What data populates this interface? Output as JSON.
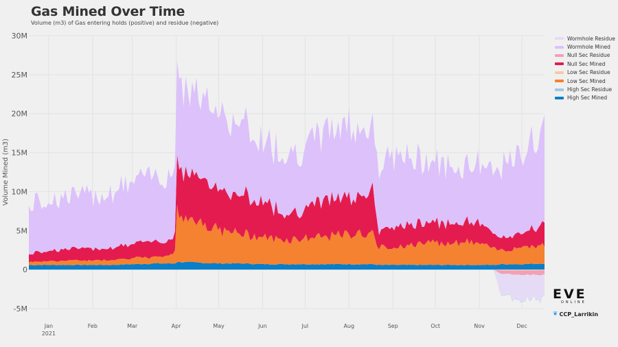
{
  "header": {
    "title": "Gas Mined Over Time",
    "subtitle": "Volume (m3) of Gas entering holds (positive) and residue (negative)"
  },
  "branding": {
    "logo_text": "EVE",
    "logo_subtext": "ONLINE",
    "credit": "CCP_Larrikin",
    "credit_icon": "twitter-bird-icon"
  },
  "chart_data": {
    "type": "area",
    "stacked": true,
    "ylabel": "Volume Mined (m3)",
    "xlabel": "",
    "ylim": [
      -5000000,
      30000000
    ],
    "y_ticks": [
      {
        "value": 30000000,
        "label": "30M"
      },
      {
        "value": 25000000,
        "label": "25M"
      },
      {
        "value": 20000000,
        "label": "20M"
      },
      {
        "value": 15000000,
        "label": "15M"
      },
      {
        "value": 10000000,
        "label": "10M"
      },
      {
        "value": 5000000,
        "label": "5M"
      },
      {
        "value": 0,
        "label": "0"
      },
      {
        "value": -5000000,
        "label": "-5M"
      }
    ],
    "x_ticks": [
      "Jan",
      "Feb",
      "Mar",
      "Apr",
      "May",
      "Jun",
      "Jul",
      "Aug",
      "Sep",
      "Oct",
      "Nov",
      "Dec"
    ],
    "x_year_label": "2021",
    "x_range": [
      "2021-01-01",
      "2021-12-31"
    ],
    "grid": true,
    "legend_position": "right",
    "x": [
      "2021-01-01",
      "2021-01-15",
      "2021-02-01",
      "2021-02-15",
      "2021-03-01",
      "2021-03-15",
      "2021-04-01",
      "2021-04-14",
      "2021-04-15",
      "2021-05-01",
      "2021-05-15",
      "2021-06-01",
      "2021-06-15",
      "2021-07-01",
      "2021-07-15",
      "2021-08-01",
      "2021-08-15",
      "2021-09-01",
      "2021-09-05",
      "2021-09-15",
      "2021-10-01",
      "2021-10-15",
      "2021-11-01",
      "2021-11-15",
      "2021-11-25",
      "2021-12-01",
      "2021-12-15",
      "2021-12-31"
    ],
    "series": [
      {
        "name": "High Sec Mined",
        "color": "#0a7fc7",
        "sign": 1,
        "values": [
          0.6,
          0.6,
          0.6,
          0.6,
          0.6,
          0.7,
          0.8,
          0.8,
          1.0,
          0.9,
          0.8,
          0.8,
          0.7,
          0.7,
          0.7,
          0.7,
          0.7,
          0.7,
          0.6,
          0.6,
          0.6,
          0.6,
          0.6,
          0.6,
          0.6,
          0.7,
          0.7,
          0.8
        ]
      },
      {
        "name": "Low Sec Mined",
        "color": "#f58231",
        "sign": 1,
        "values": [
          0.4,
          0.5,
          0.6,
          0.6,
          0.7,
          0.8,
          0.8,
          1.2,
          6.5,
          5.5,
          4.2,
          3.8,
          3.5,
          3.2,
          3.4,
          3.5,
          3.9,
          4.0,
          2.2,
          2.3,
          2.6,
          2.8,
          3.0,
          2.8,
          2.0,
          1.8,
          2.3,
          2.4
        ]
      },
      {
        "name": "Low Sec Residue",
        "color": "#f8c9a8",
        "sign": -1,
        "values": [
          0,
          0,
          0,
          0,
          0,
          0,
          0,
          0,
          0,
          0,
          0,
          0,
          0,
          0,
          0,
          0,
          0,
          0,
          0,
          0,
          0,
          0,
          0,
          0,
          0,
          0.1,
          0.1,
          0.1
        ]
      },
      {
        "name": "Null Sec Mined",
        "color": "#e41b4e",
        "sign": 1,
        "values": [
          1.0,
          1.4,
          1.5,
          1.5,
          1.6,
          1.8,
          2.0,
          2.0,
          6.3,
          6.0,
          5.2,
          4.8,
          4.7,
          3.5,
          3.7,
          4.8,
          4.8,
          5.8,
          2.2,
          2.6,
          2.6,
          2.6,
          2.6,
          2.7,
          1.7,
          1.6,
          1.8,
          2.8
        ]
      },
      {
        "name": "Null Sec Residue",
        "color": "#f2a0b4",
        "sign": -1,
        "values": [
          0,
          0,
          0,
          0,
          0,
          0,
          0,
          0,
          0,
          0,
          0,
          0,
          0,
          0,
          0,
          0,
          0,
          0,
          0,
          0,
          0,
          0,
          0,
          0,
          0,
          0.5,
          0.6,
          0.6
        ]
      },
      {
        "name": "Wormhole Mined",
        "color": "#dcc1fb",
        "sign": 1,
        "values": [
          6.3,
          6.5,
          6.8,
          6.8,
          7.2,
          7.9,
          8.4,
          8.6,
          11.8,
          10.5,
          10.0,
          9.0,
          7.8,
          7.9,
          7.8,
          8.9,
          9.4,
          8.4,
          8.5,
          9.0,
          8.3,
          7.7,
          7.2,
          7.7,
          7.6,
          9.0,
          10.1,
          12.5
        ]
      },
      {
        "name": "Wormhole Residue",
        "color": "#e6dbf6",
        "sign": -1,
        "values": [
          0,
          0,
          0,
          0,
          0,
          0,
          0,
          0,
          0,
          0,
          0,
          0,
          0,
          0,
          0,
          0,
          0,
          0,
          0,
          0,
          0,
          0,
          0,
          0,
          0,
          3.0,
          3.4,
          3.0
        ]
      },
      {
        "name": "High Sec Residue",
        "color": "#9dc9e6",
        "sign": -1,
        "values": [
          0,
          0,
          0,
          0,
          0,
          0,
          0,
          0,
          0,
          0,
          0,
          0,
          0,
          0,
          0,
          0,
          0,
          0,
          0,
          0,
          0,
          0,
          0,
          0,
          0,
          0.05,
          0.05,
          0.05
        ]
      }
    ],
    "values_unit": "millions of m3"
  },
  "legend": [
    {
      "label": "Wormhole Residue",
      "color": "#e6dbf6"
    },
    {
      "label": "Wormhole Mined",
      "color": "#dcc1fb"
    },
    {
      "label": "Null Sec Residue",
      "color": "#f2a0b4"
    },
    {
      "label": "Null Sec Mined",
      "color": "#e41b4e"
    },
    {
      "label": "Low Sec Residue",
      "color": "#f8c9a8"
    },
    {
      "label": "Low Sec Mined",
      "color": "#f58231"
    },
    {
      "label": "High Sec Residue",
      "color": "#9dc9e6"
    },
    {
      "label": "High Sec Mined",
      "color": "#0a7fc7"
    }
  ]
}
